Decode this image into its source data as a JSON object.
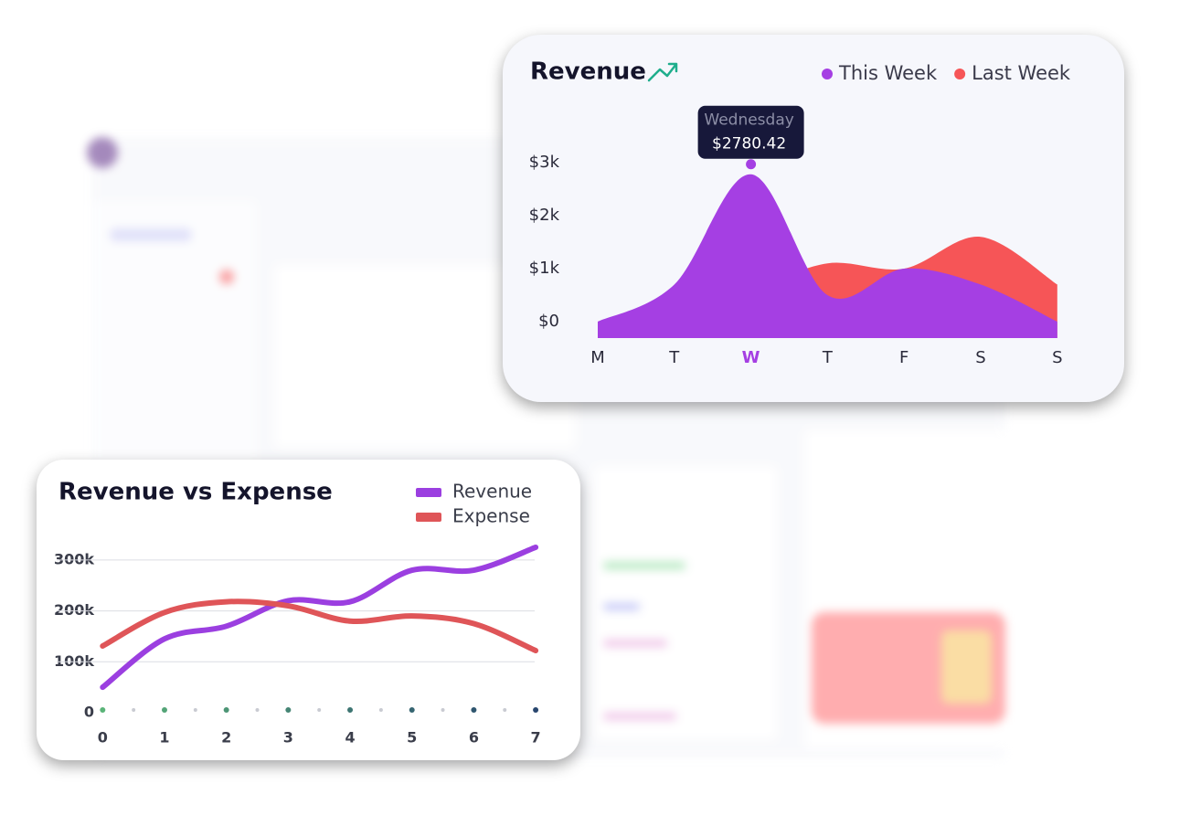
{
  "chart_data": [
    {
      "type": "area",
      "title": "Revenue",
      "categories": [
        "M",
        "T",
        "W",
        "T",
        "F",
        "S",
        "S"
      ],
      "series": [
        {
          "name": "This Week",
          "color": "#a53fe3",
          "values": [
            0,
            700,
            2780.42,
            500,
            1000,
            700,
            0
          ]
        },
        {
          "name": "Last Week",
          "color": "#f65557",
          "values": [
            0,
            200,
            600,
            1100,
            1000,
            1600,
            700
          ]
        }
      ],
      "ylim": [
        -310,
        3000
      ],
      "yticks": [
        {
          "value": 0,
          "label": "$0"
        },
        {
          "value": 1000,
          "label": "$1k"
        },
        {
          "value": 2000,
          "label": "$2k"
        },
        {
          "value": 3000,
          "label": "$3k"
        }
      ],
      "legend": "top-right",
      "tooltip": {
        "category_index": 2,
        "title": "Wednesday",
        "value": 2780.42,
        "value_label": "$2780.42"
      }
    },
    {
      "type": "line",
      "title": "Revenue vs Expense",
      "x": [
        0,
        1,
        2,
        3,
        4,
        5,
        6,
        7
      ],
      "series": [
        {
          "name": "Revenue",
          "color": "#9b3fe0",
          "values": [
            50000,
            145000,
            170000,
            220000,
            218000,
            280000,
            280000,
            325000
          ]
        },
        {
          "name": "Expense",
          "color": "#df5558",
          "values": [
            131000,
            197000,
            218000,
            210000,
            180000,
            190000,
            175000,
            122000
          ]
        }
      ],
      "xlim": [
        -0.3,
        7.25
      ],
      "xticks": [
        0,
        1,
        2,
        3,
        4,
        5,
        6,
        7
      ],
      "ylim": [
        0,
        330000
      ],
      "yticks": [
        0,
        {
          "value": 100000,
          "label": "100k"
        },
        {
          "value": 200000,
          "label": "200k"
        },
        {
          "value": 300000,
          "label": "300k"
        }
      ],
      "grid": true,
      "legend": "top-right"
    }
  ]
}
